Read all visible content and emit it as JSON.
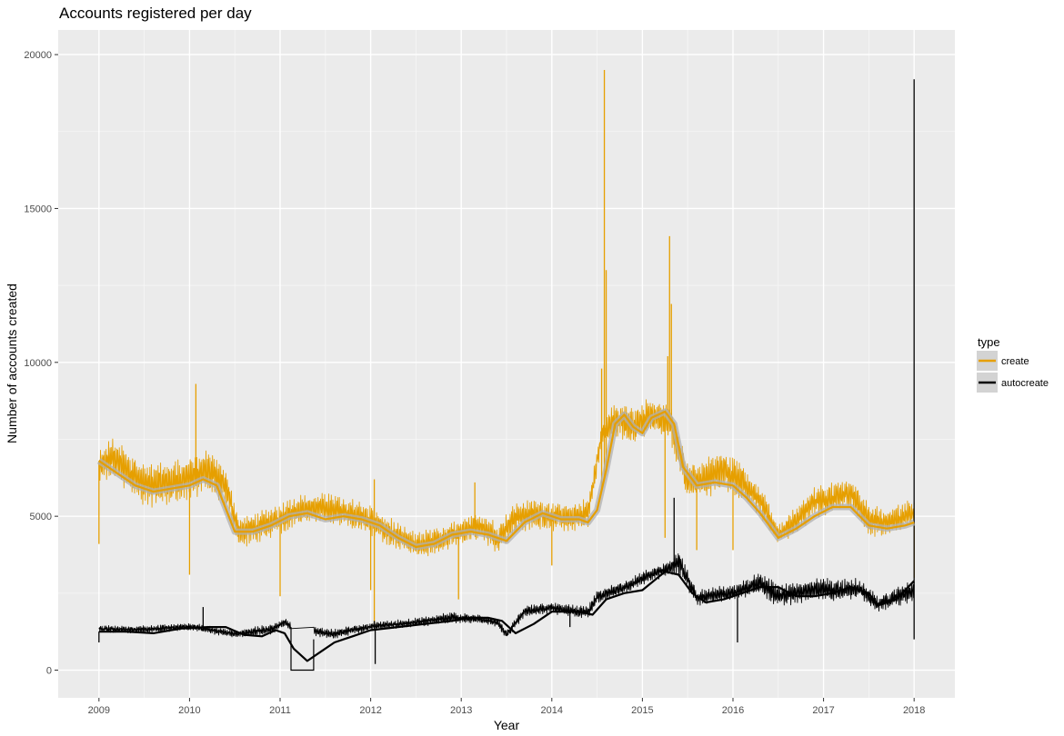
{
  "chart_data": {
    "type": "line",
    "title": "Accounts registered per day",
    "xlabel": "Year",
    "ylabel": "Number of accounts created",
    "xlim": [
      2008.55,
      2018.45
    ],
    "ylim": [
      -900,
      20800
    ],
    "x_ticks": [
      "2009",
      "2010",
      "2011",
      "2012",
      "2013",
      "2014",
      "2015",
      "2016",
      "2017",
      "2018"
    ],
    "y_ticks": [
      "0",
      "5000",
      "10000",
      "15000",
      "20000"
    ],
    "grid": true,
    "legend": {
      "title": "type",
      "position": "right"
    },
    "series": [
      {
        "name": "create",
        "color": "#E69F00",
        "raw_envelope": {
          "x": [
            2009.0,
            2009.15,
            2009.3,
            2009.5,
            2009.75,
            2010.0,
            2010.2,
            2010.4,
            2010.55,
            2010.8,
            2011.0,
            2011.2,
            2011.5,
            2011.8,
            2012.0,
            2012.2,
            2012.5,
            2012.8,
            2013.0,
            2013.2,
            2013.4,
            2013.6,
            2013.8,
            2014.0,
            2014.2,
            2014.4,
            2014.55,
            2014.7,
            2014.9,
            2015.1,
            2015.3,
            2015.5,
            2015.7,
            2015.9,
            2016.1,
            2016.3,
            2016.5,
            2016.7,
            2016.9,
            2017.1,
            2017.3,
            2017.5,
            2017.7,
            2017.9,
            2018.0
          ],
          "high": [
            7200,
            7600,
            7300,
            6800,
            6800,
            7000,
            7200,
            6600,
            5000,
            5200,
            5500,
            5700,
            5800,
            5600,
            5400,
            5000,
            4500,
            4700,
            5000,
            5200,
            4800,
            5500,
            5600,
            5500,
            5400,
            5600,
            8000,
            8800,
            8600,
            8900,
            8800,
            6800,
            6900,
            7200,
            6800,
            6000,
            4800,
            5300,
            6000,
            6100,
            6300,
            5400,
            5300,
            5500,
            5600
          ],
          "low": [
            5500,
            5800,
            5300,
            4700,
            4800,
            5000,
            5300,
            4900,
            3600,
            3800,
            4000,
            4400,
            4400,
            4200,
            4000,
            3600,
            3300,
            3500,
            3700,
            3900,
            3400,
            4100,
            4200,
            4200,
            4100,
            4300,
            7000,
            7000,
            6900,
            7200,
            6900,
            5100,
            5100,
            5400,
            5100,
            4600,
            3800,
            4100,
            4600,
            4700,
            4900,
            4000,
            4000,
            4200,
            4300
          ]
        },
        "spikes": [
          {
            "x": 2009.0,
            "y": 4100
          },
          {
            "x": 2010.0,
            "y": 3100
          },
          {
            "x": 2010.07,
            "y": 9300
          },
          {
            "x": 2011.0,
            "y": 2400
          },
          {
            "x": 2012.0,
            "y": 2600
          },
          {
            "x": 2012.04,
            "y": 1500
          },
          {
            "x": 2012.04,
            "y": 6200
          },
          {
            "x": 2012.97,
            "y": 2300
          },
          {
            "x": 2013.15,
            "y": 6100
          },
          {
            "x": 2014.0,
            "y": 3400
          },
          {
            "x": 2014.58,
            "y": 19500
          },
          {
            "x": 2014.6,
            "y": 13000
          },
          {
            "x": 2014.55,
            "y": 9800
          },
          {
            "x": 2015.25,
            "y": 4300
          },
          {
            "x": 2015.3,
            "y": 14100
          },
          {
            "x": 2015.32,
            "y": 11900
          },
          {
            "x": 2015.28,
            "y": 10200
          },
          {
            "x": 2015.6,
            "y": 3900
          },
          {
            "x": 2016.0,
            "y": 3900
          },
          {
            "x": 2018.0,
            "y": 3000
          }
        ],
        "smooth": {
          "x": [
            2009.0,
            2009.2,
            2009.4,
            2009.6,
            2009.8,
            2010.0,
            2010.15,
            2010.3,
            2010.5,
            2010.7,
            2010.9,
            2011.1,
            2011.3,
            2011.5,
            2011.7,
            2011.9,
            2012.1,
            2012.3,
            2012.5,
            2012.7,
            2012.9,
            2013.1,
            2013.3,
            2013.5,
            2013.7,
            2013.9,
            2014.1,
            2014.3,
            2014.4,
            2014.5,
            2014.6,
            2014.7,
            2014.8,
            2014.9,
            2015.0,
            2015.1,
            2015.25,
            2015.35,
            2015.45,
            2015.6,
            2015.8,
            2016.0,
            2016.15,
            2016.3,
            2016.5,
            2016.7,
            2016.9,
            2017.1,
            2017.3,
            2017.5,
            2017.7,
            2017.9,
            2018.0
          ],
          "y": [
            6800,
            6400,
            6000,
            5800,
            5900,
            6000,
            6200,
            6000,
            4500,
            4500,
            4700,
            5000,
            5100,
            4900,
            5000,
            4900,
            4700,
            4300,
            4000,
            4100,
            4400,
            4500,
            4400,
            4200,
            4800,
            5100,
            4900,
            4900,
            4800,
            5200,
            6500,
            8000,
            8300,
            7900,
            7700,
            8200,
            8400,
            8000,
            6600,
            6000,
            6100,
            6000,
            5600,
            5100,
            4300,
            4600,
            5000,
            5300,
            5300,
            4700,
            4600,
            4700,
            4800
          ]
        }
      },
      {
        "name": "autocreate",
        "color": "#000000",
        "raw_envelope": {
          "x": [
            2009.0,
            2009.5,
            2010.0,
            2010.5,
            2010.9,
            2011.05,
            2011.1,
            2011.15,
            2011.6,
            2012.0,
            2012.5,
            2012.9,
            2013.2,
            2013.4,
            2013.5,
            2013.7,
            2014.0,
            2014.4,
            2014.5,
            2014.8,
            2015.0,
            2015.3,
            2015.4,
            2015.6,
            2015.8,
            2016.0,
            2016.3,
            2016.5,
            2016.7,
            2016.9,
            2017.2,
            2017.4,
            2017.6,
            2017.8,
            2018.0
          ],
          "high": [
            1450,
            1450,
            1550,
            1300,
            1500,
            1700,
            1600,
            1500,
            1350,
            1550,
            1700,
            1900,
            1800,
            1700,
            1300,
            2100,
            2200,
            2100,
            2600,
            2900,
            3200,
            3600,
            4000,
            2600,
            2700,
            2800,
            3200,
            2800,
            2900,
            3000,
            3000,
            3000,
            2400,
            2700,
            3000
          ],
          "low": [
            1150,
            1100,
            1200,
            950,
            1050,
            1300,
            1200,
            1100,
            900,
            1200,
            1300,
            1400,
            1400,
            1300,
            900,
            1600,
            1700,
            1500,
            2000,
            2300,
            2600,
            2900,
            2700,
            1900,
            2000,
            2000,
            2300,
            1700,
            1900,
            2000,
            1900,
            2100,
            1700,
            1800,
            1900
          ]
        },
        "flat_segments": [
          {
            "x": [
              2011.12,
              2011.12,
              2011.37,
              2011.37
            ],
            "y": [
              1400,
              0,
              0,
              1000
            ]
          }
        ],
        "spikes": [
          {
            "x": 2009.0,
            "y": 900
          },
          {
            "x": 2010.15,
            "y": 2050
          },
          {
            "x": 2012.05,
            "y": 200
          },
          {
            "x": 2012.04,
            "y": 1600
          },
          {
            "x": 2014.2,
            "y": 1400
          },
          {
            "x": 2015.35,
            "y": 5600
          },
          {
            "x": 2016.05,
            "y": 900
          },
          {
            "x": 2018.0,
            "y": 19200
          },
          {
            "x": 2018.0,
            "y": 1000
          }
        ],
        "smooth": {
          "x": [
            2009.0,
            2009.3,
            2009.6,
            2009.9,
            2010.2,
            2010.4,
            2010.6,
            2010.8,
            2010.95,
            2011.05,
            2011.15,
            2011.3,
            2011.45,
            2011.6,
            2011.8,
            2012.0,
            2012.3,
            2012.6,
            2012.9,
            2013.1,
            2013.3,
            2013.45,
            2013.6,
            2013.8,
            2014.0,
            2014.3,
            2014.45,
            2014.6,
            2014.8,
            2015.0,
            2015.25,
            2015.4,
            2015.55,
            2015.7,
            2015.9,
            2016.1,
            2016.3,
            2016.5,
            2016.7,
            2016.9,
            2017.1,
            2017.3,
            2017.5,
            2017.6,
            2017.8,
            2018.0
          ],
          "y": [
            1250,
            1250,
            1200,
            1350,
            1400,
            1400,
            1150,
            1100,
            1300,
            1200,
            700,
            300,
            600,
            900,
            1100,
            1300,
            1400,
            1500,
            1600,
            1700,
            1700,
            1600,
            1200,
            1500,
            1900,
            1900,
            1800,
            2300,
            2500,
            2600,
            3200,
            3100,
            2500,
            2200,
            2300,
            2500,
            2700,
            2700,
            2400,
            2400,
            2500,
            2700,
            2500,
            2100,
            2300,
            2900
          ]
        }
      }
    ]
  }
}
